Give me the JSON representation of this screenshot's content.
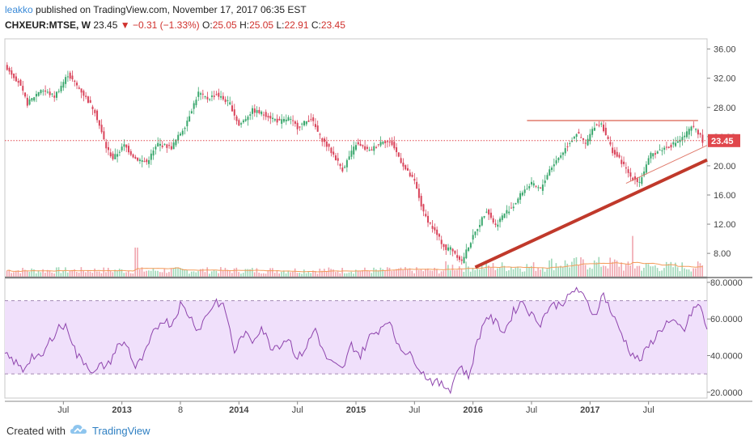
{
  "header": {
    "author": "leakko",
    "published_text": "published on TradingView.com, November 17, 2017 06:35 EST",
    "symbol": "CHXEUR:MTSE, W",
    "price": "23.45",
    "change_arrow": "▼",
    "change": "−0.31 (−1.33%)",
    "o_label": "O:",
    "o_value": "25.05",
    "h_label": "H:",
    "h_value": "25.05",
    "l_label": "L:",
    "l_value": "22.91",
    "c_label": "C:",
    "c_value": "23.45"
  },
  "footer": {
    "created_with": "Created with",
    "brand": "TradingView"
  },
  "colors": {
    "up": "#3aa76d",
    "down": "#d9435a",
    "trend": "#c0392b",
    "rsi": "#8e44ad",
    "rsi_band": "#f0e0fb",
    "ma": "#f39c5a",
    "last_price": "#e0474c"
  },
  "chart_data": [
    {
      "type": "candlestick",
      "title": "",
      "last_price_label": "23.45",
      "y_ticks": [
        "36.00",
        "32.00",
        "28.00",
        "24.00",
        "20.00",
        "16.00",
        "12.00",
        "8.00"
      ],
      "ylim": [
        4.8,
        37.4
      ],
      "x_ticks": [
        "Jul",
        "2013",
        "8",
        "2014",
        "Jul",
        "2015",
        "Jul",
        "2016",
        "Jul",
        "2017",
        "Jul"
      ],
      "x_tick_weeks": [
        26,
        52,
        78,
        104,
        130,
        156,
        182,
        208,
        234,
        260,
        286
      ],
      "weeks": 312,
      "price_path": [
        [
          0,
          33.8
        ],
        [
          6,
          31.5
        ],
        [
          10,
          28.5
        ],
        [
          16,
          30.5
        ],
        [
          22,
          29.5
        ],
        [
          28,
          32.5
        ],
        [
          34,
          30.2
        ],
        [
          40,
          27.5
        ],
        [
          45,
          22.5
        ],
        [
          48,
          21.0
        ],
        [
          53,
          22.8
        ],
        [
          58,
          21.0
        ],
        [
          63,
          20.5
        ],
        [
          68,
          23.0
        ],
        [
          74,
          22.5
        ],
        [
          80,
          25.5
        ],
        [
          86,
          30.0
        ],
        [
          90,
          29.2
        ],
        [
          94,
          29.8
        ],
        [
          100,
          28.5
        ],
        [
          104,
          25.5
        ],
        [
          110,
          27.6
        ],
        [
          116,
          27.0
        ],
        [
          122,
          26.0
        ],
        [
          126,
          26.5
        ],
        [
          130,
          25.3
        ],
        [
          136,
          26.5
        ],
        [
          140,
          24.0
        ],
        [
          146,
          21.5
        ],
        [
          150,
          19.5
        ],
        [
          156,
          23.0
        ],
        [
          162,
          22.0
        ],
        [
          168,
          23.5
        ],
        [
          172,
          23.0
        ],
        [
          178,
          19.5
        ],
        [
          182,
          17.8
        ],
        [
          186,
          13.5
        ],
        [
          192,
          10.5
        ],
        [
          196,
          8.5
        ],
        [
          198,
          8.8
        ],
        [
          203,
          6.9
        ],
        [
          206,
          9.0
        ],
        [
          210,
          11.5
        ],
        [
          214,
          14.0
        ],
        [
          218,
          11.8
        ],
        [
          222,
          13.5
        ],
        [
          226,
          14.5
        ],
        [
          230,
          16.5
        ],
        [
          234,
          17.5
        ],
        [
          238,
          16.8
        ],
        [
          242,
          19.5
        ],
        [
          247,
          21.5
        ],
        [
          250,
          22.8
        ],
        [
          254,
          24.5
        ],
        [
          258,
          23.0
        ],
        [
          262,
          25.5
        ],
        [
          265,
          25.8
        ],
        [
          270,
          22.0
        ],
        [
          274,
          20.5
        ],
        [
          278,
          18.5
        ],
        [
          282,
          17.8
        ],
        [
          287,
          21.5
        ],
        [
          292,
          22.3
        ],
        [
          296,
          22.8
        ],
        [
          301,
          23.8
        ],
        [
          305,
          25.2
        ],
        [
          307,
          25.1
        ],
        [
          310,
          23.45
        ]
      ],
      "resistance_level": 26.2,
      "resistance_weeks": [
        232,
        308
      ],
      "trendline_thick": [
        [
          209,
          6.1
        ],
        [
          312,
          20.8
        ]
      ],
      "trendline_thin": [
        [
          276,
          17.6
        ],
        [
          312,
          22.8
        ]
      ],
      "volume_ma": "orange moving average line"
    },
    {
      "type": "line",
      "title": "",
      "series": [
        {
          "values": [
            [
              0,
              40.0
            ],
            [
              4,
              37.0
            ],
            [
              8,
              32.0
            ],
            [
              12,
              40.0
            ],
            [
              16,
              38.0
            ],
            [
              20,
              48.0
            ],
            [
              24,
              56.0
            ],
            [
              28,
              55.0
            ],
            [
              32,
              40.0
            ],
            [
              36,
              36.0
            ],
            [
              40,
              30.0
            ],
            [
              42,
              34.0
            ],
            [
              46,
              35.0
            ],
            [
              50,
              45.0
            ],
            [
              54,
              47.0
            ],
            [
              58,
              33.0
            ],
            [
              62,
              40.0
            ],
            [
              66,
              52.0
            ],
            [
              70,
              60.0
            ],
            [
              74,
              57.0
            ],
            [
              78,
              68.0
            ],
            [
              82,
              62.0
            ],
            [
              86,
              54.0
            ],
            [
              90,
              63.0
            ],
            [
              94,
              70.0
            ],
            [
              98,
              65.0
            ],
            [
              102,
              42.0
            ],
            [
              106,
              52.0
            ],
            [
              110,
              48.0
            ],
            [
              114,
              56.0
            ],
            [
              118,
              45.0
            ],
            [
              122,
              46.0
            ],
            [
              126,
              50.0
            ],
            [
              130,
              38.0
            ],
            [
              134,
              45.0
            ],
            [
              138,
              55.0
            ],
            [
              142,
              40.0
            ],
            [
              146,
              35.0
            ],
            [
              150,
              32.0
            ],
            [
              154,
              46.0
            ],
            [
              158,
              40.0
            ],
            [
              162,
              50.0
            ],
            [
              166,
              54.0
            ],
            [
              170,
              60.0
            ],
            [
              174,
              48.0
            ],
            [
              178,
              42.0
            ],
            [
              182,
              38.0
            ],
            [
              186,
              30.0
            ],
            [
              190,
              26.0
            ],
            [
              194,
              24.0
            ],
            [
              198,
              22.0
            ],
            [
              202,
              35.0
            ],
            [
              206,
              28.0
            ],
            [
              210,
              48.0
            ],
            [
              214,
              62.0
            ],
            [
              218,
              58.0
            ],
            [
              222,
              53.0
            ],
            [
              226,
              64.0
            ],
            [
              230,
              70.0
            ],
            [
              234,
              62.0
            ],
            [
              238,
              58.0
            ],
            [
              242,
              67.0
            ],
            [
              246,
              68.0
            ],
            [
              250,
              71.0
            ],
            [
              254,
              77.0
            ],
            [
              258,
              70.0
            ],
            [
              262,
              62.0
            ],
            [
              266,
              74.0
            ],
            [
              270,
              62.0
            ],
            [
              274,
              52.0
            ],
            [
              278,
              42.0
            ],
            [
              282,
              37.0
            ],
            [
              286,
              45.0
            ],
            [
              290,
              52.0
            ],
            [
              294,
              58.0
            ],
            [
              298,
              57.0
            ],
            [
              302,
              54.0
            ],
            [
              306,
              66.0
            ],
            [
              309,
              67.0
            ],
            [
              312,
              54.0
            ]
          ]
        }
      ],
      "y_ticks": [
        "80.0000",
        "60.0000",
        "40.0000",
        "20.0000"
      ],
      "ylim": [
        16.8,
        82.2
      ],
      "band": [
        30,
        70
      ]
    }
  ]
}
